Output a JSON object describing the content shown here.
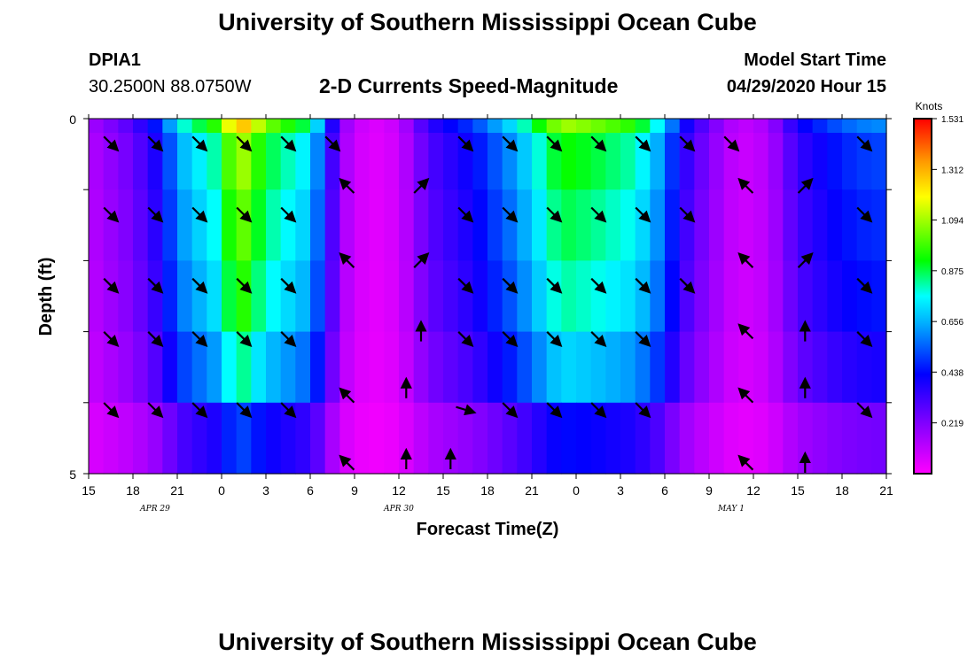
{
  "page": {
    "title_top": "University of Southern Mississippi Ocean Cube",
    "title_bottom": "University of Southern Mississippi Ocean Cube",
    "station_id": "DPIA1",
    "station_coords": "30.2500N 88.0750W",
    "model_start_label": "Model Start Time",
    "model_start_value": "04/29/2020 Hour 15"
  },
  "chart_data": {
    "type": "heatmap",
    "title": "2-D Currents Speed-Magnitude",
    "xlabel": "Forecast Time(Z)",
    "ylabel": "Depth (ft)",
    "ylim": [
      0,
      5
    ],
    "y_ticks": [
      "0",
      "5"
    ],
    "x_ticks": [
      "15",
      "18",
      "21",
      "0",
      "3",
      "6",
      "9",
      "12",
      "15",
      "18",
      "21",
      "0",
      "3",
      "6",
      "9",
      "12",
      "15",
      "18",
      "21"
    ],
    "date_labels": [
      "APR 29",
      "APR 30",
      "MAY 1"
    ],
    "colorbar": {
      "label": "Knots",
      "ticks": [
        "1.531",
        "1.312",
        "1.094",
        "0.875",
        "0.656",
        "0.438",
        "0.219"
      ],
      "min": 0,
      "max": 1.531
    },
    "n_time_steps": 54,
    "depth_rows": 5,
    "speed_keyframes": [
      [
        0,
        0.15
      ],
      [
        3,
        0.3
      ],
      [
        5,
        0.5
      ],
      [
        6,
        0.75
      ],
      [
        9,
        1.0
      ],
      [
        10,
        1.35
      ],
      [
        12,
        1.05
      ],
      [
        15,
        0.85
      ],
      [
        16,
        0.55
      ],
      [
        17,
        0.2
      ],
      [
        19,
        0.05
      ],
      [
        21,
        0.1
      ],
      [
        23,
        0.35
      ],
      [
        26,
        0.5
      ],
      [
        29,
        0.75
      ],
      [
        32,
        1.1
      ],
      [
        34,
        1.05
      ],
      [
        37,
        0.95
      ],
      [
        39,
        0.7
      ],
      [
        40,
        0.45
      ],
      [
        42,
        0.25
      ],
      [
        44,
        0.1
      ],
      [
        46,
        0.15
      ],
      [
        48,
        0.4
      ],
      [
        51,
        0.55
      ],
      [
        53,
        0.6
      ]
    ],
    "depth_factors": [
      1.0,
      0.85,
      0.8,
      0.75,
      0.65,
      0.4
    ],
    "vectors": [
      {
        "t": 1,
        "d": 0.35,
        "dir": "se"
      },
      {
        "t": 4,
        "d": 0.35,
        "dir": "se"
      },
      {
        "t": 7,
        "d": 0.35,
        "dir": "se"
      },
      {
        "t": 10,
        "d": 0.35,
        "dir": "se"
      },
      {
        "t": 13,
        "d": 0.35,
        "dir": "se"
      },
      {
        "t": 16,
        "d": 0.35,
        "dir": "se"
      },
      {
        "t": 25,
        "d": 0.35,
        "dir": "se"
      },
      {
        "t": 28,
        "d": 0.35,
        "dir": "se"
      },
      {
        "t": 31,
        "d": 0.35,
        "dir": "se"
      },
      {
        "t": 34,
        "d": 0.35,
        "dir": "se"
      },
      {
        "t": 37,
        "d": 0.35,
        "dir": "se"
      },
      {
        "t": 40,
        "d": 0.35,
        "dir": "se"
      },
      {
        "t": 43,
        "d": 0.35,
        "dir": "se"
      },
      {
        "t": 52,
        "d": 0.35,
        "dir": "se"
      },
      {
        "t": 1,
        "d": 1.35,
        "dir": "se"
      },
      {
        "t": 4,
        "d": 1.35,
        "dir": "se"
      },
      {
        "t": 7,
        "d": 1.35,
        "dir": "se"
      },
      {
        "t": 10,
        "d": 1.35,
        "dir": "se"
      },
      {
        "t": 13,
        "d": 1.35,
        "dir": "se"
      },
      {
        "t": 17,
        "d": 0.95,
        "dir": "nw"
      },
      {
        "t": 22,
        "d": 0.95,
        "dir": "ne"
      },
      {
        "t": 25,
        "d": 1.35,
        "dir": "se"
      },
      {
        "t": 28,
        "d": 1.35,
        "dir": "se"
      },
      {
        "t": 31,
        "d": 1.35,
        "dir": "se"
      },
      {
        "t": 34,
        "d": 1.35,
        "dir": "se"
      },
      {
        "t": 37,
        "d": 1.35,
        "dir": "se"
      },
      {
        "t": 40,
        "d": 1.35,
        "dir": "se"
      },
      {
        "t": 44,
        "d": 0.95,
        "dir": "nw"
      },
      {
        "t": 48,
        "d": 0.95,
        "dir": "ne"
      },
      {
        "t": 52,
        "d": 1.35,
        "dir": "se"
      },
      {
        "t": 1,
        "d": 2.35,
        "dir": "se"
      },
      {
        "t": 4,
        "d": 2.35,
        "dir": "se"
      },
      {
        "t": 7,
        "d": 2.35,
        "dir": "se"
      },
      {
        "t": 10,
        "d": 2.35,
        "dir": "se"
      },
      {
        "t": 13,
        "d": 2.35,
        "dir": "se"
      },
      {
        "t": 17,
        "d": 2.0,
        "dir": "nw"
      },
      {
        "t": 22,
        "d": 2.0,
        "dir": "ne"
      },
      {
        "t": 25,
        "d": 2.35,
        "dir": "se"
      },
      {
        "t": 28,
        "d": 2.35,
        "dir": "se"
      },
      {
        "t": 31,
        "d": 2.35,
        "dir": "se"
      },
      {
        "t": 34,
        "d": 2.35,
        "dir": "se"
      },
      {
        "t": 37,
        "d": 2.35,
        "dir": "se"
      },
      {
        "t": 40,
        "d": 2.35,
        "dir": "se"
      },
      {
        "t": 44,
        "d": 2.0,
        "dir": "nw"
      },
      {
        "t": 48,
        "d": 2.0,
        "dir": "ne"
      },
      {
        "t": 52,
        "d": 2.35,
        "dir": "se"
      },
      {
        "t": 1,
        "d": 3.1,
        "dir": "se"
      },
      {
        "t": 4,
        "d": 3.1,
        "dir": "se"
      },
      {
        "t": 7,
        "d": 3.1,
        "dir": "se"
      },
      {
        "t": 10,
        "d": 3.1,
        "dir": "se"
      },
      {
        "t": 13,
        "d": 3.1,
        "dir": "se"
      },
      {
        "t": 22,
        "d": 3.0,
        "dir": "n"
      },
      {
        "t": 25,
        "d": 3.1,
        "dir": "se"
      },
      {
        "t": 28,
        "d": 3.1,
        "dir": "se"
      },
      {
        "t": 31,
        "d": 3.1,
        "dir": "se"
      },
      {
        "t": 34,
        "d": 3.1,
        "dir": "se"
      },
      {
        "t": 37,
        "d": 3.1,
        "dir": "se"
      },
      {
        "t": 44,
        "d": 3.0,
        "dir": "nw"
      },
      {
        "t": 48,
        "d": 3.0,
        "dir": "n"
      },
      {
        "t": 52,
        "d": 3.1,
        "dir": "se"
      },
      {
        "t": 1,
        "d": 4.1,
        "dir": "se"
      },
      {
        "t": 4,
        "d": 4.1,
        "dir": "se"
      },
      {
        "t": 7,
        "d": 4.1,
        "dir": "se"
      },
      {
        "t": 10,
        "d": 4.1,
        "dir": "se"
      },
      {
        "t": 13,
        "d": 4.1,
        "dir": "se"
      },
      {
        "t": 17,
        "d": 3.9,
        "dir": "nw"
      },
      {
        "t": 21,
        "d": 3.8,
        "dir": "n"
      },
      {
        "t": 25,
        "d": 4.1,
        "dir": "e"
      },
      {
        "t": 28,
        "d": 4.1,
        "dir": "se"
      },
      {
        "t": 31,
        "d": 4.1,
        "dir": "se"
      },
      {
        "t": 34,
        "d": 4.1,
        "dir": "se"
      },
      {
        "t": 37,
        "d": 4.1,
        "dir": "se"
      },
      {
        "t": 44,
        "d": 3.9,
        "dir": "nw"
      },
      {
        "t": 48,
        "d": 3.8,
        "dir": "n"
      },
      {
        "t": 52,
        "d": 4.1,
        "dir": "se"
      },
      {
        "t": 17,
        "d": 4.85,
        "dir": "nw"
      },
      {
        "t": 21,
        "d": 4.8,
        "dir": "n"
      },
      {
        "t": 24,
        "d": 4.8,
        "dir": "n"
      },
      {
        "t": 44,
        "d": 4.85,
        "dir": "nw"
      },
      {
        "t": 48,
        "d": 4.85,
        "dir": "n"
      }
    ]
  }
}
